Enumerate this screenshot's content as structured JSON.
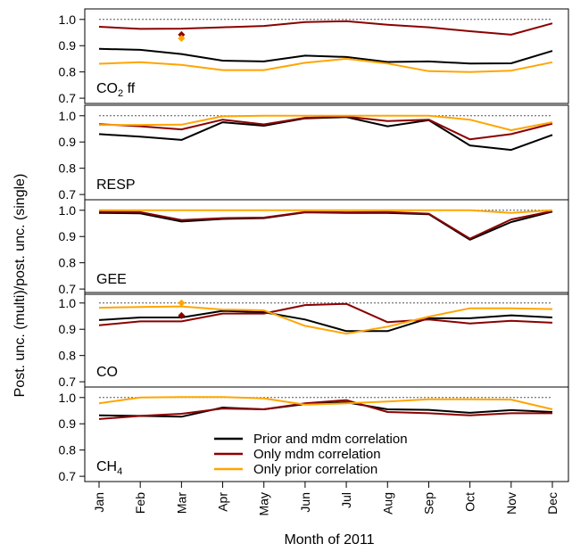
{
  "chart_data": {
    "type": "line",
    "ylabel": "Post. unc. (multi)/post. unc. (single)",
    "xlabel": "Month of 2011",
    "categories": [
      "Jan",
      "Feb",
      "Mar",
      "Apr",
      "May",
      "Jun",
      "Jul",
      "Aug",
      "Sep",
      "Oct",
      "Nov",
      "Dec"
    ],
    "ylim": [
      0.68,
      1.04
    ],
    "yticks": [
      "0.7",
      "0.8",
      "0.9",
      "1.0"
    ],
    "reference_line": 1.0,
    "series_colors": {
      "prior_and_mdm": "#000000",
      "only_mdm": "#8b0000",
      "only_prior": "#ffa500"
    },
    "legend": {
      "placement": "bottom panel, center",
      "entries": [
        {
          "key": "prior_and_mdm",
          "label": "Prior and mdm correlation"
        },
        {
          "key": "only_mdm",
          "label": "Only mdm correlation"
        },
        {
          "key": "only_prior",
          "label": "Only prior correlation"
        }
      ]
    },
    "panels": [
      {
        "label_main": "CO",
        "label_sub": "2",
        "label_rest": " ff",
        "series": [
          {
            "key": "prior_and_mdm",
            "values": [
              0.888,
              0.884,
              0.868,
              0.843,
              0.84,
              0.862,
              0.857,
              0.838,
              0.84,
              0.832,
              0.833,
              0.88
            ]
          },
          {
            "key": "only_mdm",
            "values": [
              0.972,
              0.964,
              0.965,
              0.97,
              0.975,
              0.99,
              0.993,
              0.98,
              0.97,
              0.955,
              0.942,
              0.985
            ]
          },
          {
            "key": "only_prior",
            "values": [
              0.831,
              0.837,
              0.827,
              0.807,
              0.807,
              0.835,
              0.85,
              0.832,
              0.803,
              0.8,
              0.805,
              0.837
            ]
          }
        ],
        "markers": [
          {
            "key": "only_mdm",
            "x": "Mar",
            "y": 0.942
          },
          {
            "key": "only_prior",
            "x": "Mar",
            "y": 0.928
          }
        ]
      },
      {
        "label_main": "RESP",
        "label_sub": "",
        "label_rest": "",
        "series": [
          {
            "key": "prior_and_mdm",
            "values": [
              0.93,
              0.92,
              0.908,
              0.975,
              0.962,
              0.99,
              0.995,
              0.96,
              0.983,
              0.887,
              0.87,
              0.927
            ]
          },
          {
            "key": "only_mdm",
            "values": [
              0.968,
              0.96,
              0.948,
              0.985,
              0.967,
              0.992,
              0.997,
              0.98,
              0.985,
              0.91,
              0.93,
              0.97
            ]
          },
          {
            "key": "only_prior",
            "values": [
              0.965,
              0.965,
              0.966,
              0.998,
              1.0,
              1.0,
              1.0,
              1.0,
              1.0,
              0.985,
              0.945,
              0.975
            ]
          }
        ],
        "markers": []
      },
      {
        "label_main": "GEE",
        "label_sub": "",
        "label_rest": "",
        "series": [
          {
            "key": "prior_and_mdm",
            "values": [
              0.99,
              0.988,
              0.957,
              0.967,
              0.97,
              0.992,
              0.99,
              0.99,
              0.985,
              0.888,
              0.955,
              0.995
            ]
          },
          {
            "key": "only_mdm",
            "values": [
              0.994,
              0.993,
              0.963,
              0.97,
              0.972,
              0.993,
              0.992,
              0.993,
              0.987,
              0.892,
              0.965,
              0.997
            ]
          },
          {
            "key": "only_prior",
            "values": [
              1.0,
              1.0,
              1.0,
              1.0,
              1.0,
              1.0,
              1.0,
              1.0,
              1.0,
              1.0,
              0.99,
              1.0
            ]
          }
        ],
        "markers": []
      },
      {
        "label_main": "CO",
        "label_sub": "",
        "label_rest": "",
        "series": [
          {
            "key": "prior_and_mdm",
            "values": [
              0.935,
              0.945,
              0.945,
              0.97,
              0.965,
              0.937,
              0.893,
              0.893,
              0.942,
              0.942,
              0.953,
              0.945
            ]
          },
          {
            "key": "only_mdm",
            "values": [
              0.915,
              0.93,
              0.93,
              0.96,
              0.96,
              0.992,
              0.997,
              0.927,
              0.937,
              0.922,
              0.932,
              0.925
            ]
          },
          {
            "key": "only_prior",
            "values": [
              0.982,
              0.985,
              0.987,
              0.975,
              0.972,
              0.913,
              0.883,
              0.91,
              0.948,
              0.98,
              0.98,
              0.977
            ]
          }
        ],
        "markers": [
          {
            "key": "only_mdm",
            "x": "Mar",
            "y": 0.952
          },
          {
            "key": "only_prior",
            "x": "Mar",
            "y": 1.0
          }
        ]
      },
      {
        "label_main": "CH",
        "label_sub": "4",
        "label_rest": "",
        "series": [
          {
            "key": "prior_and_mdm",
            "values": [
              0.932,
              0.93,
              0.927,
              0.962,
              0.955,
              0.975,
              0.982,
              0.955,
              0.953,
              0.942,
              0.952,
              0.945
            ]
          },
          {
            "key": "only_mdm",
            "values": [
              0.918,
              0.93,
              0.938,
              0.958,
              0.955,
              0.978,
              0.99,
              0.945,
              0.94,
              0.932,
              0.94,
              0.94
            ]
          },
          {
            "key": "only_prior",
            "values": [
              0.978,
              1.0,
              1.002,
              1.002,
              0.997,
              0.973,
              0.978,
              0.985,
              0.993,
              0.993,
              0.992,
              0.955
            ]
          }
        ],
        "markers": []
      }
    ]
  }
}
